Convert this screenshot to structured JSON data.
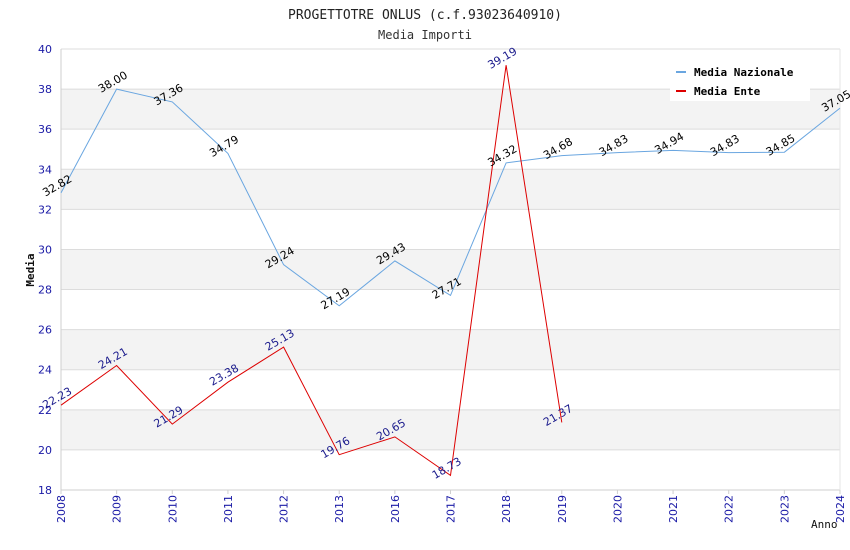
{
  "chart_data": {
    "type": "line",
    "title": "PROGETTOTRE ONLUS (c.f.93023640910)",
    "subtitle": "Media Importi",
    "xlabel": "Anno",
    "ylabel": "Media",
    "ylim": [
      18,
      40
    ],
    "yticks": [
      "18",
      "20",
      "22",
      "24",
      "26",
      "28",
      "30",
      "32",
      "34",
      "36",
      "38",
      "40"
    ],
    "categories": [
      "2008",
      "2009",
      "2010",
      "2011",
      "2012",
      "2013",
      "2016",
      "2017",
      "2018",
      "2019",
      "2020",
      "2021",
      "2022",
      "2023",
      "2024"
    ],
    "grid": true,
    "legend_position": "top-right",
    "series": [
      {
        "name": "Media Nazionale",
        "color": "#6aa6e0",
        "label_color": "#000000",
        "values": [
          32.82,
          38.0,
          37.36,
          34.79,
          29.24,
          27.19,
          29.43,
          27.71,
          34.32,
          34.68,
          34.83,
          34.94,
          34.83,
          34.85,
          37.05
        ],
        "labels": [
          "32.82",
          "38.00",
          "37.36",
          "34.79",
          "29.24",
          "27.19",
          "29.43",
          "27.71",
          "34.32",
          "34.68",
          "34.83",
          "34.94",
          "34.83",
          "34.85",
          "37.05"
        ]
      },
      {
        "name": "Media Ente",
        "color": "#dd0000",
        "label_color": "#1a1a8c",
        "values": [
          22.23,
          24.21,
          21.29,
          23.38,
          25.13,
          19.76,
          20.65,
          18.73,
          39.19,
          21.37,
          null,
          null,
          null,
          null,
          null
        ],
        "labels": [
          "22.23",
          "24.21",
          "21.29",
          "23.38",
          "25.13",
          "19.76",
          "20.65",
          "18.73",
          "39.19",
          "21.37",
          null,
          null,
          null,
          null,
          null
        ]
      }
    ]
  }
}
